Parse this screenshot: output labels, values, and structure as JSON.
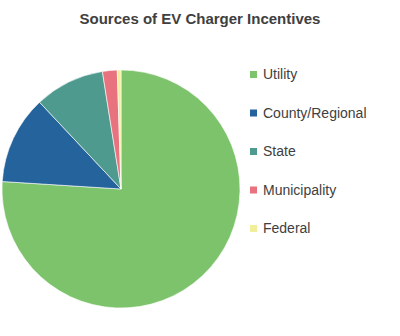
{
  "chart_data": {
    "type": "pie",
    "title": "Sources of EV Charger Incentives",
    "categories": [
      "Utility",
      "County/Regional",
      "State",
      "Municipality",
      "Federal"
    ],
    "values": [
      76,
      12,
      9.5,
      2,
      0.5
    ],
    "colors": [
      "#7cc36c",
      "#24639c",
      "#4f9a8f",
      "#e8737f",
      "#f2ef9c"
    ],
    "legend": "right",
    "data_labels": false
  }
}
